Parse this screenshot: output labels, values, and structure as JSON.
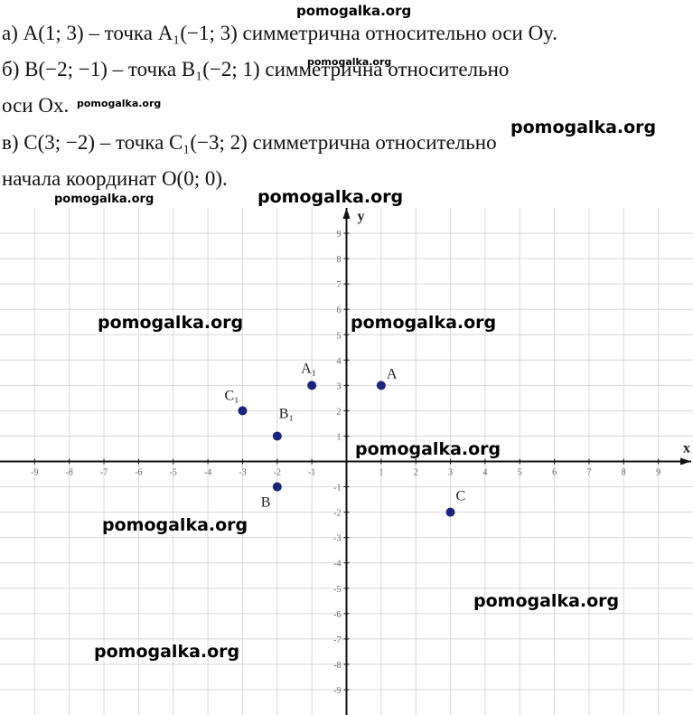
{
  "lines": [
    "а) A(1; 3) – точка A₁(−1; 3) симметрична относительно оси Oy.",
    "б) B(−2; −1) – точка B₁(−2; 1) симметрична относительно",
    "оси Ox.",
    "в) C(3; −2) – точка C₁(−3; 2) симметрична относительно",
    "начала координат O(0; 0)."
  ],
  "watermarks": [
    "pomogalka.org",
    "pomogalka.org",
    "pomogalka.org",
    "pomogalka.org",
    "pomogalka.org",
    "pomogalka.org",
    "pomogalka.org",
    "pomogalka.org",
    "pomogalka.org",
    "pomogalka.org",
    "pomogalka.org",
    "pomogalka.org"
  ],
  "chart_data": {
    "type": "scatter",
    "x_label": "x",
    "y_label": "y",
    "x": [
      1,
      -1,
      -2,
      -2,
      3,
      -3
    ],
    "values": [
      3,
      3,
      -1,
      1,
      -2,
      2
    ],
    "point_labels": [
      "A",
      "A₁",
      "B",
      "B₁",
      "C",
      "C₁"
    ],
    "color": "#1a237e",
    "xlim": [
      -10,
      10
    ],
    "ylim": [
      -10,
      10
    ],
    "xticks": [
      -9,
      -8,
      -7,
      -6,
      -5,
      -4,
      -3,
      -2,
      -1,
      1,
      2,
      3,
      4,
      5,
      6,
      7,
      8,
      9
    ],
    "yticks": [
      -9,
      -8,
      -7,
      -6,
      -5,
      -4,
      -3,
      -2,
      -1,
      1,
      2,
      3,
      4,
      5,
      6,
      7,
      8,
      9
    ],
    "grid": true
  }
}
